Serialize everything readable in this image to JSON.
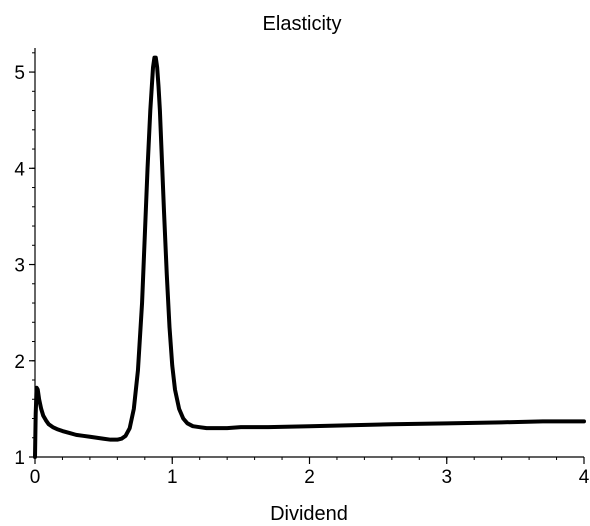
{
  "chart_data": {
    "type": "line",
    "title": "Elasticity",
    "xlabel": "Dividend",
    "ylabel": "",
    "xlim": [
      0,
      4
    ],
    "ylim": [
      1,
      5.25
    ],
    "x_ticks": [
      0,
      1,
      2,
      3,
      4
    ],
    "x_tick_labels": [
      "0",
      "1",
      "2",
      "3",
      "4"
    ],
    "y_ticks": [
      1,
      2,
      3,
      4,
      5
    ],
    "y_tick_labels": [
      "1",
      "2",
      "3",
      "4",
      "5"
    ],
    "grid": false,
    "line_color": "#000000",
    "series": [
      {
        "x": [
          0.0,
          0.005,
          0.012,
          0.02,
          0.03,
          0.045,
          0.06,
          0.08,
          0.1,
          0.13,
          0.16,
          0.2,
          0.25,
          0.3,
          0.35,
          0.4,
          0.45,
          0.5,
          0.55,
          0.6,
          0.63,
          0.66,
          0.69,
          0.72,
          0.75,
          0.78,
          0.8,
          0.82,
          0.84,
          0.86,
          0.87,
          0.88,
          0.89,
          0.9,
          0.91,
          0.92,
          0.94,
          0.96,
          0.98,
          1.0,
          1.02,
          1.05,
          1.08,
          1.11,
          1.15,
          1.2,
          1.25,
          1.3,
          1.35,
          1.4,
          1.5,
          1.7,
          2.0,
          2.3,
          2.6,
          3.0,
          3.4,
          3.7,
          4.0
        ],
        "y": [
          1.0,
          1.45,
          1.72,
          1.7,
          1.6,
          1.5,
          1.43,
          1.38,
          1.34,
          1.31,
          1.29,
          1.27,
          1.25,
          1.23,
          1.22,
          1.21,
          1.2,
          1.19,
          1.18,
          1.18,
          1.19,
          1.22,
          1.3,
          1.5,
          1.9,
          2.6,
          3.3,
          4.0,
          4.6,
          5.05,
          5.15,
          5.15,
          5.05,
          4.85,
          4.6,
          4.25,
          3.55,
          2.9,
          2.35,
          1.95,
          1.7,
          1.5,
          1.4,
          1.35,
          1.32,
          1.31,
          1.3,
          1.3,
          1.3,
          1.3,
          1.31,
          1.31,
          1.32,
          1.33,
          1.34,
          1.35,
          1.36,
          1.37,
          1.37
        ]
      }
    ]
  }
}
